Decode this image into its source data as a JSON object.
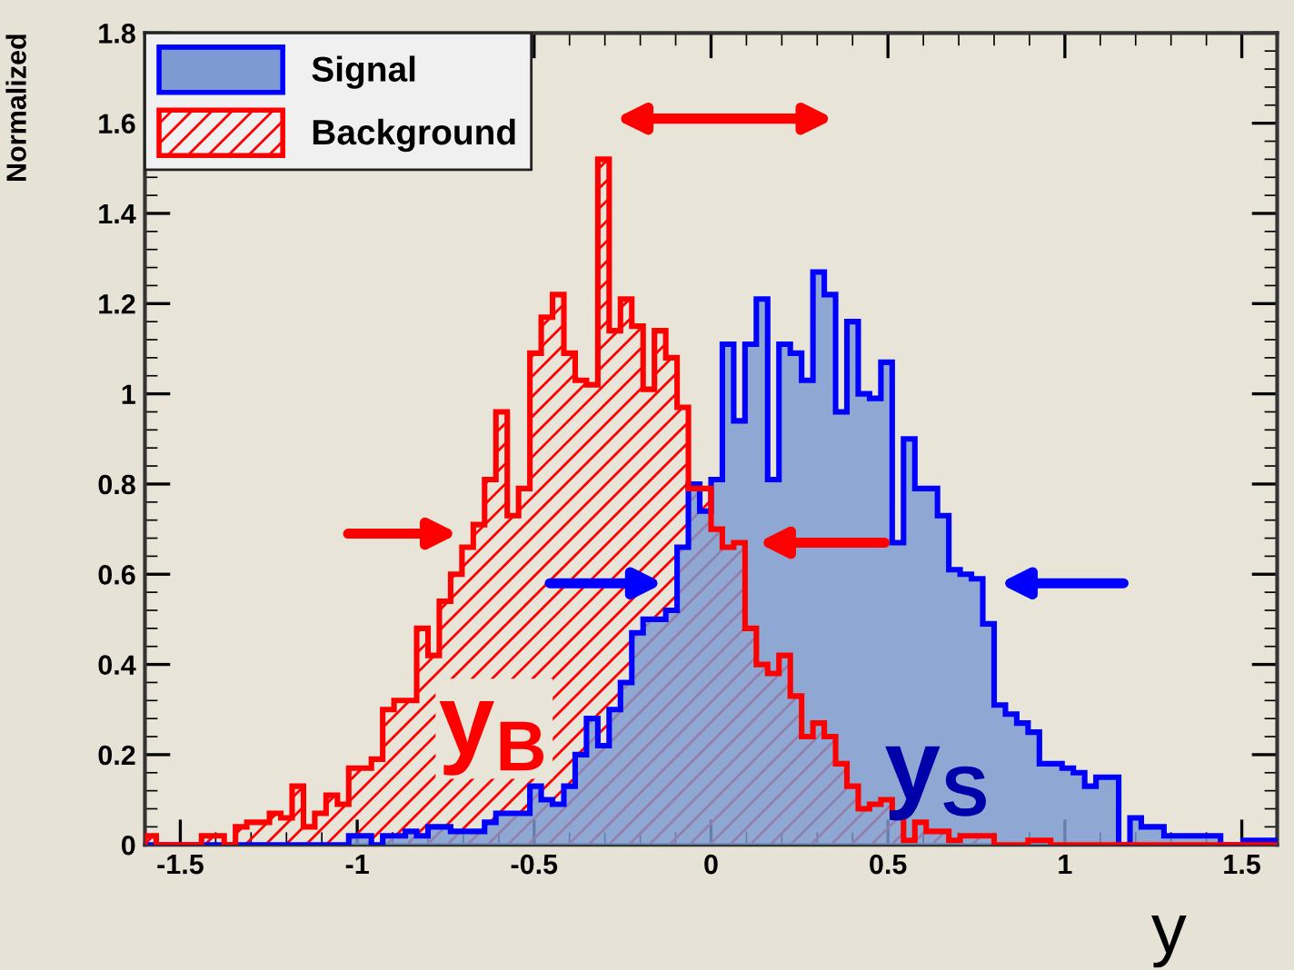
{
  "chart_data": {
    "type": "histogram",
    "ylabel": "Normalized",
    "xlabel": "y",
    "annotations": [
      "y$_{B}$",
      "y$_{S}$"
    ],
    "bins": [
      -1.6,
      -1.568,
      -1.536,
      -1.504,
      -1.472,
      -1.44,
      -1.408,
      -1.376,
      -1.344,
      -1.312,
      -1.28,
      -1.248,
      -1.216,
      -1.184,
      -1.152,
      -1.12,
      -1.088,
      -1.056,
      -1.024,
      -0.992,
      -0.96,
      -0.928,
      -0.896,
      -0.864,
      -0.832,
      -0.8,
      -0.768,
      -0.736,
      -0.704,
      -0.672,
      -0.64,
      -0.608,
      -0.576,
      -0.544,
      -0.512,
      -0.48,
      -0.448,
      -0.416,
      -0.384,
      -0.352,
      -0.32,
      -0.288,
      -0.256,
      -0.224,
      -0.192,
      -0.16,
      -0.128,
      -0.096,
      -0.064,
      -0.032,
      0,
      0.032,
      0.064,
      0.096,
      0.128,
      0.16,
      0.192,
      0.224,
      0.256,
      0.288,
      0.32,
      0.352,
      0.384,
      0.416,
      0.448,
      0.48,
      0.512,
      0.544,
      0.576,
      0.608,
      0.64,
      0.672,
      0.704,
      0.736,
      0.768,
      0.8,
      0.832,
      0.864,
      0.896,
      0.928,
      0.96,
      0.992,
      1.024,
      1.056,
      1.088,
      1.12,
      1.152,
      1.184,
      1.216,
      1.248,
      1.28,
      1.312,
      1.344,
      1.376,
      1.408,
      1.44,
      1.472,
      1.504,
      1.536,
      1.568,
      1.6
    ],
    "series": [
      {
        "name": "Signal",
        "color": "#7b9bd2",
        "values": [
          0,
          0,
          0,
          0,
          0,
          0,
          0,
          0,
          0,
          0,
          0,
          0,
          0,
          0,
          0,
          0,
          0,
          0,
          0.02,
          0.02,
          0,
          0.02,
          0.02,
          0.03,
          0.02,
          0.04,
          0.04,
          0.03,
          0.03,
          0.03,
          0.05,
          0.07,
          0.07,
          0.07,
          0.13,
          0.1,
          0.09,
          0.13,
          0.2,
          0.28,
          0.22,
          0.3,
          0.36,
          0.47,
          0.5,
          0.5,
          0.52,
          0.66,
          0.8,
          0.74,
          0.81,
          1.11,
          0.94,
          1.11,
          1.21,
          0.81,
          1.11,
          1.09,
          1.03,
          1.27,
          1.22,
          0.96,
          1.16,
          1.0,
          0.99,
          1.07,
          0.67,
          0.9,
          0.79,
          0.79,
          0.73,
          0.61,
          0.6,
          0.59,
          0.49,
          0.31,
          0.29,
          0.27,
          0.25,
          0.18,
          0.18,
          0.17,
          0.16,
          0.13,
          0.15,
          0.15,
          0,
          0.06,
          0.04,
          0.04,
          0.02,
          0.02,
          0.02,
          0.02,
          0.02,
          0,
          0,
          0.01,
          0.01,
          0.01
        ]
      },
      {
        "name": "Background",
        "color": "#ff0000",
        "values": [
          0.02,
          0,
          0,
          0,
          0,
          0.02,
          0.02,
          0,
          0.04,
          0.05,
          0.05,
          0.07,
          0.06,
          0.13,
          0.04,
          0.07,
          0.11,
          0.09,
          0.17,
          0.17,
          0.19,
          0.3,
          0.32,
          0.32,
          0.48,
          0.42,
          0.54,
          0.6,
          0.66,
          0.71,
          0.81,
          0.96,
          0.73,
          0.79,
          1.09,
          1.17,
          1.22,
          1.09,
          1.03,
          1.02,
          1.52,
          1.14,
          1.21,
          1.15,
          1.01,
          1.14,
          1.08,
          0.97,
          0.79,
          0.79,
          0.7,
          0.66,
          0.67,
          0.48,
          0.4,
          0.38,
          0.42,
          0.33,
          0.24,
          0.27,
          0.24,
          0.18,
          0.13,
          0.08,
          0.09,
          0.1,
          0.07,
          0.01,
          0.05,
          0.03,
          0.03,
          0.01,
          0.02,
          0.02,
          0.02,
          0,
          0,
          0,
          0.01,
          0.01,
          0,
          0,
          0,
          0,
          0,
          0,
          0,
          0,
          0,
          0,
          0,
          0,
          0,
          0,
          0,
          0,
          0,
          0,
          0,
          0
        ]
      }
    ],
    "xlim": [
      -1.6,
      1.6
    ],
    "xticks": [
      -1.5,
      -1,
      -0.5,
      0,
      0.5,
      1,
      1.5
    ],
    "ylim": [
      0,
      1.8
    ],
    "yticks": [
      0,
      0.2,
      0.4,
      0.6,
      0.8,
      1,
      1.2,
      1.4,
      1.6,
      1.8
    ],
    "legend": "top left",
    "grid": false
  }
}
